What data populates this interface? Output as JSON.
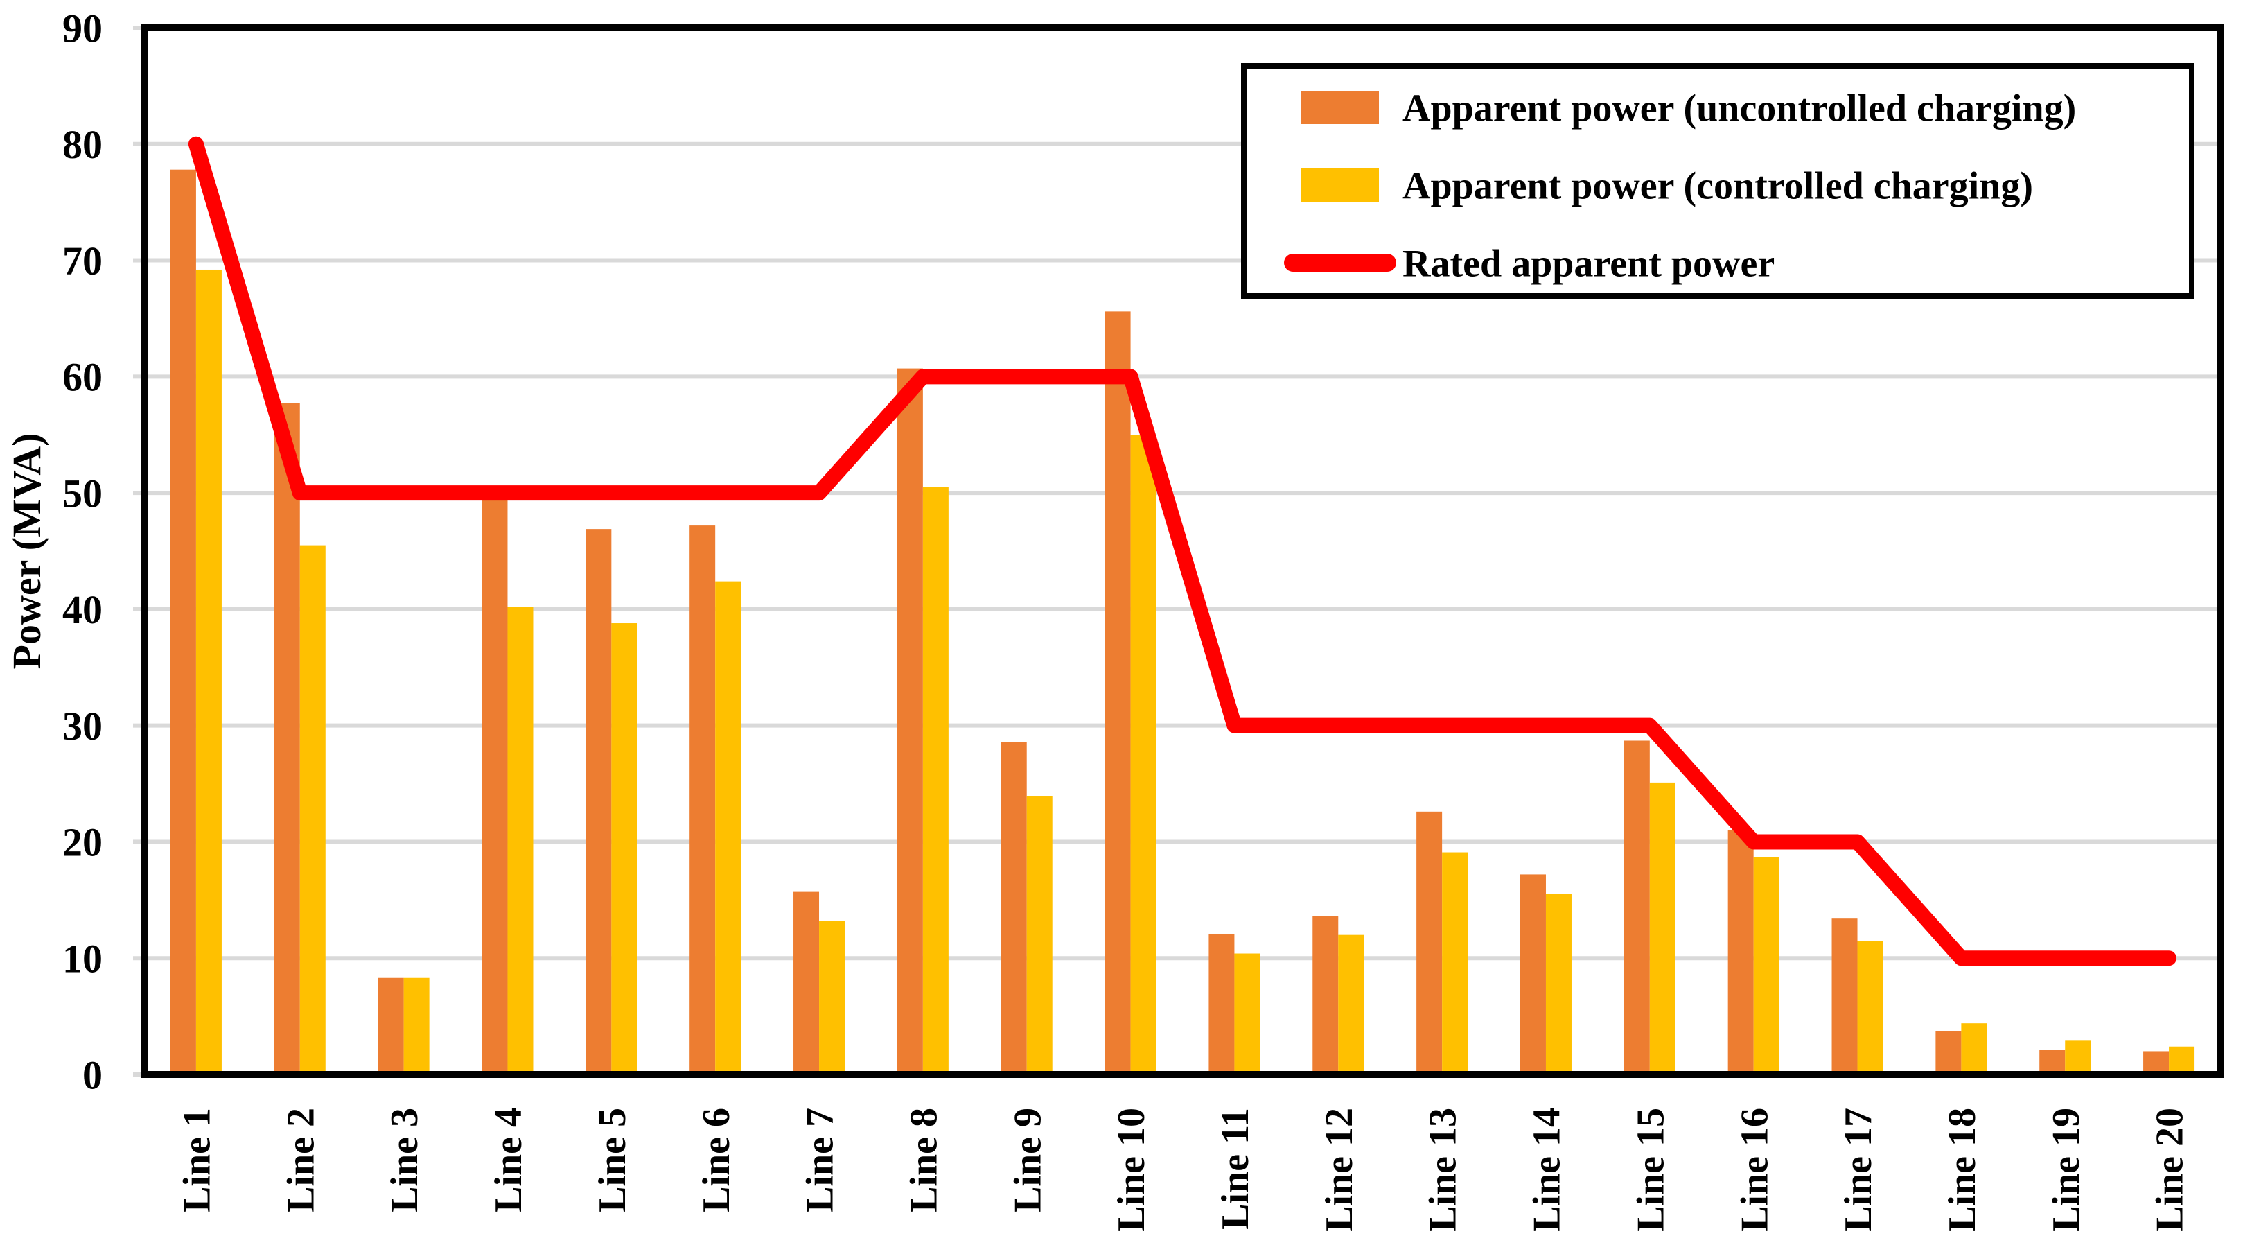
{
  "chart_data": {
    "type": "bar",
    "title": "",
    "categories": [
      "Line 1",
      "Line 2",
      "Line 3",
      "Line 4",
      "Line 5",
      "Line 6",
      "Line 7",
      "Line 8",
      "Line 9",
      "Line 10",
      "Line 11",
      "Line 12",
      "Line 13",
      "Line 14",
      "Line 15",
      "Line 16",
      "Line 17",
      "Line 18",
      "Line 19",
      "Line 20"
    ],
    "series": [
      {
        "name": "Apparent power (uncontrolled charging)",
        "type": "bar",
        "color": "#ED7D31",
        "values": [
          77.8,
          57.7,
          8.3,
          49.9,
          46.9,
          47.2,
          15.7,
          60.7,
          28.6,
          65.6,
          12.1,
          13.6,
          22.6,
          17.2,
          28.7,
          21.0,
          13.4,
          3.7,
          2.1,
          2.0
        ]
      },
      {
        "name": "Apparent power (controlled charging)",
        "type": "bar",
        "color": "#FFC000",
        "values": [
          69.2,
          45.5,
          8.3,
          40.2,
          38.8,
          42.4,
          13.2,
          50.5,
          23.9,
          55.0,
          10.4,
          12.0,
          19.1,
          15.5,
          25.1,
          18.7,
          11.5,
          4.4,
          2.9,
          2.4
        ]
      },
      {
        "name": "Rated apparent power",
        "type": "line",
        "color": "#FF0000",
        "values": [
          80,
          50,
          50,
          50,
          50,
          50,
          50,
          60,
          60,
          60,
          30,
          30,
          30,
          30,
          30,
          20,
          20,
          10,
          10,
          10
        ]
      }
    ],
    "xlabel": "",
    "ylabel": "Power (MVA)",
    "ylim": [
      0,
      90
    ],
    "ytick_step": 10,
    "yticks": [
      0,
      10,
      20,
      30,
      40,
      50,
      60,
      70,
      80,
      90
    ],
    "grid": true,
    "gridline_color": "#D9D9D9",
    "axis_color": "#000000",
    "legend_position": "top-right"
  }
}
